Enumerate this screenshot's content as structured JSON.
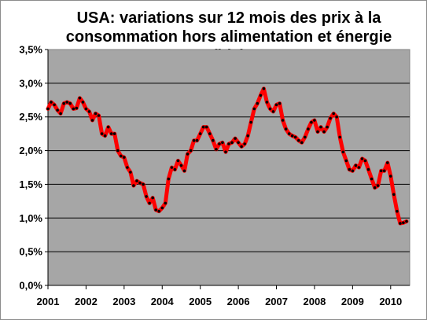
{
  "chart_data": {
    "type": "line",
    "title_line1": "USA: variations sur 12 mois des prix à la",
    "title_line2": "consommation hors alimentation et énergie (bls)",
    "y_ticks": [
      "0,0%",
      "0,5%",
      "1,0%",
      "1,5%",
      "2,0%",
      "2,5%",
      "3,0%",
      "3,5%"
    ],
    "x_ticks": [
      "2001",
      "2002",
      "2003",
      "2004",
      "2005",
      "2006",
      "2007",
      "2008",
      "2009",
      "2010"
    ],
    "ylim": [
      0,
      3.5
    ],
    "xlim": [
      2001,
      2010.5
    ],
    "grid": true,
    "colors": {
      "plot_background": "#a6a6a6",
      "line": "#ff0000",
      "markers": "#000000",
      "gridline": "#000000"
    },
    "series": [
      {
        "x_start": "2001-01",
        "frequency": "monthly",
        "values": [
          2.62,
          2.72,
          2.68,
          2.6,
          2.55,
          2.7,
          2.72,
          2.7,
          2.62,
          2.63,
          2.78,
          2.72,
          2.62,
          2.58,
          2.45,
          2.55,
          2.52,
          2.25,
          2.22,
          2.35,
          2.25,
          2.25,
          2.0,
          1.92,
          1.9,
          1.75,
          1.68,
          1.48,
          1.55,
          1.52,
          1.5,
          1.32,
          1.22,
          1.3,
          1.12,
          1.1,
          1.15,
          1.22,
          1.58,
          1.75,
          1.72,
          1.85,
          1.78,
          1.7,
          1.95,
          2.0,
          2.15,
          2.15,
          2.25,
          2.35,
          2.35,
          2.25,
          2.15,
          2.02,
          2.1,
          2.12,
          1.98,
          2.1,
          2.12,
          2.18,
          2.12,
          2.06,
          2.1,
          2.22,
          2.42,
          2.62,
          2.7,
          2.82,
          2.92,
          2.72,
          2.62,
          2.58,
          2.68,
          2.7,
          2.45,
          2.32,
          2.25,
          2.22,
          2.2,
          2.15,
          2.12,
          2.2,
          2.32,
          2.42,
          2.45,
          2.28,
          2.35,
          2.28,
          2.35,
          2.48,
          2.55,
          2.5,
          2.2,
          1.98,
          1.85,
          1.72,
          1.7,
          1.78,
          1.75,
          1.88,
          1.85,
          1.72,
          1.58,
          1.45,
          1.48,
          1.7,
          1.7,
          1.82,
          1.62,
          1.35,
          1.1,
          0.92,
          0.93,
          0.95
        ]
      }
    ]
  }
}
